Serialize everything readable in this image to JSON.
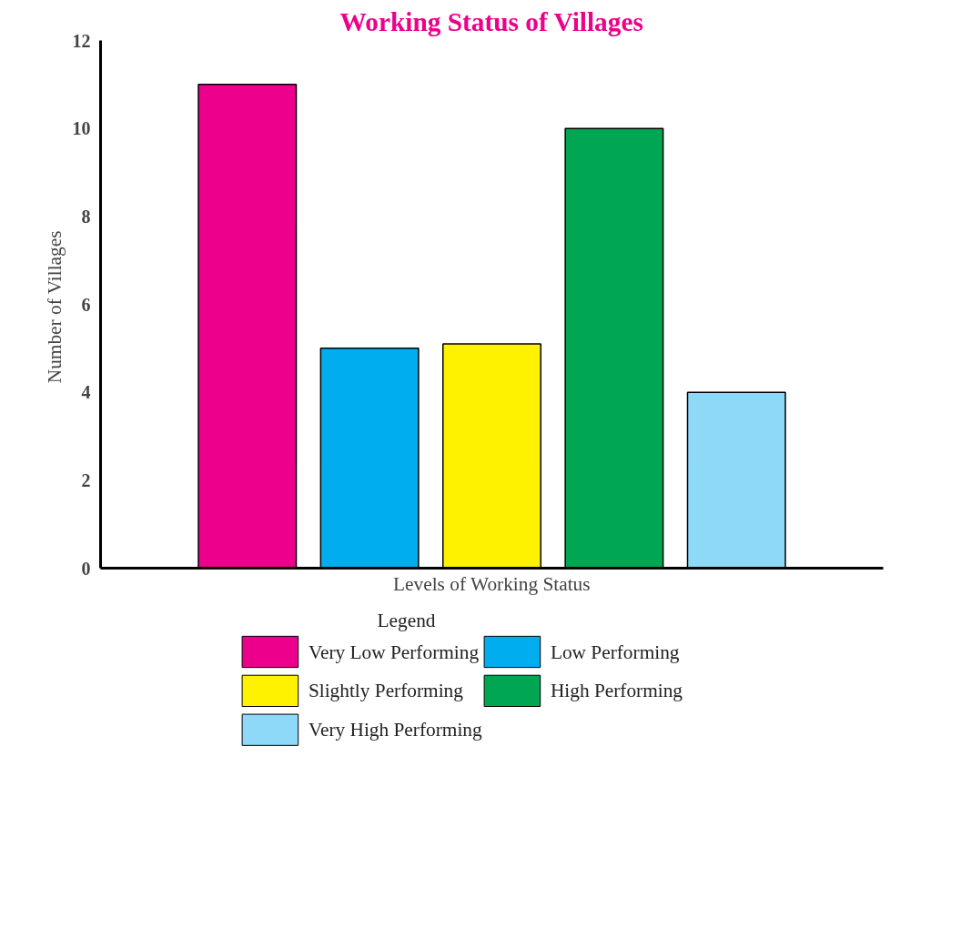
{
  "chart_data": {
    "type": "bar",
    "title": "Working Status of Villages",
    "xlabel": "Levels of Working Status",
    "ylabel": "Number of  Villages",
    "legend_title": "Legend",
    "categories": [
      null,
      null,
      null,
      null,
      null
    ],
    "series": [
      {
        "name": "Very Low Performing",
        "color": "#ec008c",
        "values": [
          11,
          null,
          null,
          null,
          null
        ]
      },
      {
        "name": "Low Performing",
        "color": "#00aeef",
        "values": [
          null,
          5,
          null,
          null,
          null
        ]
      },
      {
        "name": "Slightly Performing",
        "color": "#fff200",
        "values": [
          null,
          null,
          5.1,
          null,
          null
        ]
      },
      {
        "name": "High Performing",
        "color": "#00a651",
        "values": [
          null,
          null,
          null,
          10,
          null
        ]
      },
      {
        "name": "Very High Performing",
        "color": "#8ed8f8",
        "values": [
          null,
          null,
          null,
          null,
          4
        ]
      }
    ],
    "ylim": [
      0,
      12
    ],
    "yticks": [
      0,
      2,
      4,
      6,
      8,
      10,
      12
    ],
    "grid": false,
    "legend": "bottom"
  }
}
